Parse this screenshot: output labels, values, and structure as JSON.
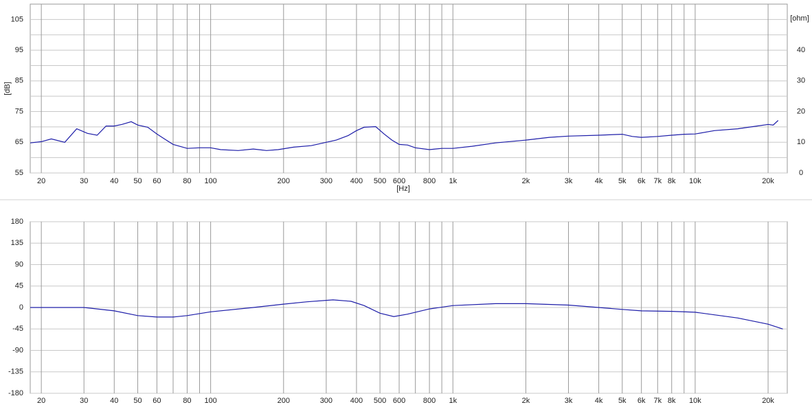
{
  "chart_data": [
    {
      "type": "line",
      "xlabel": "[Hz]",
      "ylabel": "[dB]",
      "y2label": "[ohm]",
      "xscale": "log",
      "grid": true,
      "xlim": [
        18,
        24000
      ],
      "ylim": [
        55,
        110
      ],
      "y2lim": [
        0,
        55
      ],
      "xticks": [
        20,
        30,
        40,
        50,
        60,
        80,
        100,
        200,
        300,
        400,
        500,
        600,
        800,
        {
          "value": 1000,
          "label": "1k"
        },
        {
          "value": 2000,
          "label": "2k"
        },
        {
          "value": 3000,
          "label": "3k"
        },
        {
          "value": 4000,
          "label": "4k"
        },
        {
          "value": 5000,
          "label": "5k"
        },
        {
          "value": 6000,
          "label": "6k"
        },
        {
          "value": 7000,
          "label": "7k"
        },
        {
          "value": 8000,
          "label": "8k"
        },
        {
          "value": 10000,
          "label": "10k"
        },
        {
          "value": 20000,
          "label": "20k"
        }
      ],
      "x_minor_ticks": [
        70,
        90,
        700,
        900,
        9000
      ],
      "yticks": [
        55,
        65,
        75,
        85,
        95,
        105
      ],
      "y_minor_ticks": [
        60,
        70,
        80,
        90,
        100
      ],
      "y2ticks": [
        0,
        10,
        20,
        30,
        40
      ],
      "series": [
        {
          "color": "#1c1ca8",
          "x": [
            18,
            20,
            22,
            25,
            28,
            31,
            34,
            37,
            40,
            43,
            47,
            50,
            55,
            60,
            65,
            70,
            80,
            90,
            100,
            110,
            130,
            150,
            170,
            190,
            220,
            260,
            300,
            330,
            370,
            400,
            430,
            480,
            520,
            560,
            600,
            650,
            700,
            800,
            900,
            1000,
            1200,
            1500,
            2000,
            2500,
            3000,
            4000,
            5000,
            5500,
            6000,
            7000,
            8000,
            9000,
            10000,
            12000,
            15000,
            18000,
            20000,
            21000,
            22000
          ],
          "values": [
            64.8,
            65.2,
            66.1,
            65,
            69.4,
            67.9,
            67.3,
            70.3,
            70.3,
            70.8,
            71.7,
            70.6,
            69.9,
            67.7,
            65.9,
            64.3,
            63,
            63.2,
            63.2,
            62.6,
            62.3,
            62.8,
            62.3,
            62.6,
            63.4,
            63.9,
            65,
            65.7,
            67.2,
            68.8,
            69.9,
            70.1,
            67.7,
            65.7,
            64.3,
            64.1,
            63.2,
            62.6,
            63,
            63,
            63.7,
            64.8,
            65.7,
            66.6,
            67,
            67.3,
            67.6,
            66.9,
            66.6,
            66.9,
            67.3,
            67.6,
            67.7,
            68.8,
            69.4,
            70.3,
            70.8,
            70.6,
            72.1
          ]
        }
      ]
    },
    {
      "type": "line",
      "xscale": "log",
      "grid": true,
      "xlim": [
        18,
        24000
      ],
      "ylim": [
        -180,
        180
      ],
      "xticks": [
        20,
        30,
        40,
        50,
        60,
        80,
        100,
        200,
        300,
        400,
        500,
        600,
        800,
        {
          "value": 1000,
          "label": "1k"
        },
        {
          "value": 2000,
          "label": "2k"
        },
        {
          "value": 3000,
          "label": "3k"
        },
        {
          "value": 4000,
          "label": "4k"
        },
        {
          "value": 5000,
          "label": "5k"
        },
        {
          "value": 6000,
          "label": "6k"
        },
        {
          "value": 7000,
          "label": "7k"
        },
        {
          "value": 8000,
          "label": "8k"
        },
        {
          "value": 10000,
          "label": "10k"
        },
        {
          "value": 20000,
          "label": "20k"
        }
      ],
      "x_minor_ticks": [
        70,
        90,
        700,
        900,
        9000
      ],
      "yticks": [
        -180,
        -135,
        -90,
        -45,
        0,
        45,
        90,
        135,
        180
      ],
      "series": [
        {
          "color": "#1c1ca8",
          "x": [
            18,
            30,
            40,
            50,
            60,
            70,
            80,
            100,
            150,
            200,
            250,
            320,
            380,
            430,
            500,
            570,
            650,
            800,
            1000,
            1500,
            2000,
            3000,
            4000,
            5000,
            6000,
            8000,
            10000,
            15000,
            20000,
            23000
          ],
          "values": [
            0,
            0,
            -7,
            -17,
            -20,
            -20,
            -17,
            -9,
            0,
            7,
            12,
            16,
            13,
            4,
            -12,
            -19,
            -14,
            -3,
            4,
            8,
            8,
            5,
            0,
            -4,
            -7,
            -8,
            -10,
            -22,
            -35,
            -45
          ]
        }
      ]
    }
  ]
}
